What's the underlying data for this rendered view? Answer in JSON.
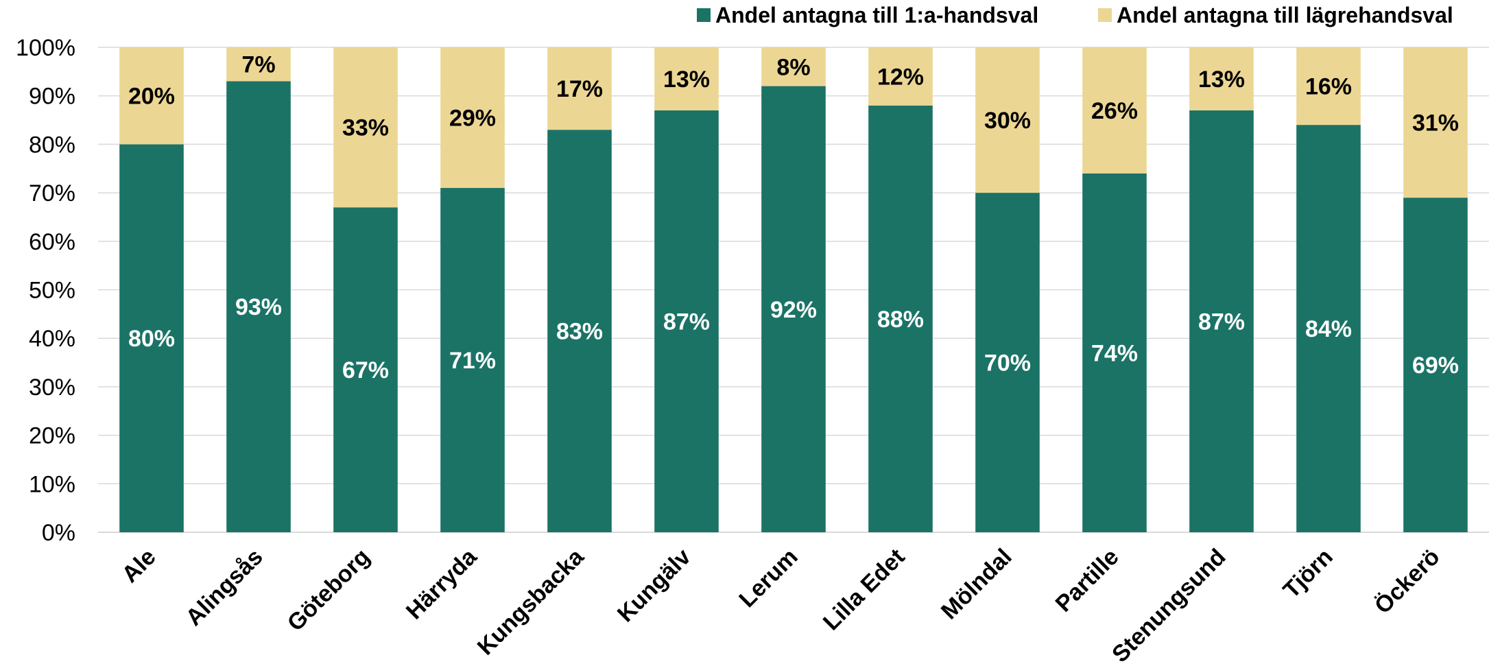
{
  "chart_data": {
    "type": "bar",
    "stacked": true,
    "categories": [
      "Ale",
      "Alingsås",
      "Göteborg",
      "Härryda",
      "Kungsbacka",
      "Kungälv",
      "Lerum",
      "Lilla Edet",
      "Mölndal",
      "Partille",
      "Stenungsund",
      "Tjörn",
      "Öckerö"
    ],
    "series": [
      {
        "name": "Andel antagna till 1:a-handsval",
        "color": "#1b7366",
        "label_color": "#ffffff",
        "values": [
          80,
          93,
          67,
          71,
          83,
          87,
          92,
          88,
          70,
          74,
          87,
          84,
          69
        ],
        "labels": [
          "80%",
          "93%",
          "67%",
          "71%",
          "83%",
          "87%",
          "92%",
          "88%",
          "70%",
          "74%",
          "87%",
          "84%",
          "69%"
        ]
      },
      {
        "name": "Andel antagna till lägrehandsval",
        "color": "#ecd694",
        "label_color": "#000000",
        "values": [
          20,
          7,
          33,
          29,
          17,
          13,
          8,
          12,
          30,
          26,
          13,
          16,
          31
        ],
        "labels": [
          "20%",
          "7%",
          "33%",
          "29%",
          "17%",
          "13%",
          "8%",
          "12%",
          "30%",
          "26%",
          "13%",
          "16%",
          "31%"
        ]
      }
    ],
    "ylim": [
      0,
      100
    ],
    "yticks": [
      "0%",
      "10%",
      "20%",
      "30%",
      "40%",
      "50%",
      "60%",
      "70%",
      "80%",
      "90%",
      "100%"
    ],
    "grid": true,
    "grid_color": "#d9d9d9",
    "legend_position": "top-right",
    "title": "",
    "xlabel": "",
    "ylabel": ""
  }
}
